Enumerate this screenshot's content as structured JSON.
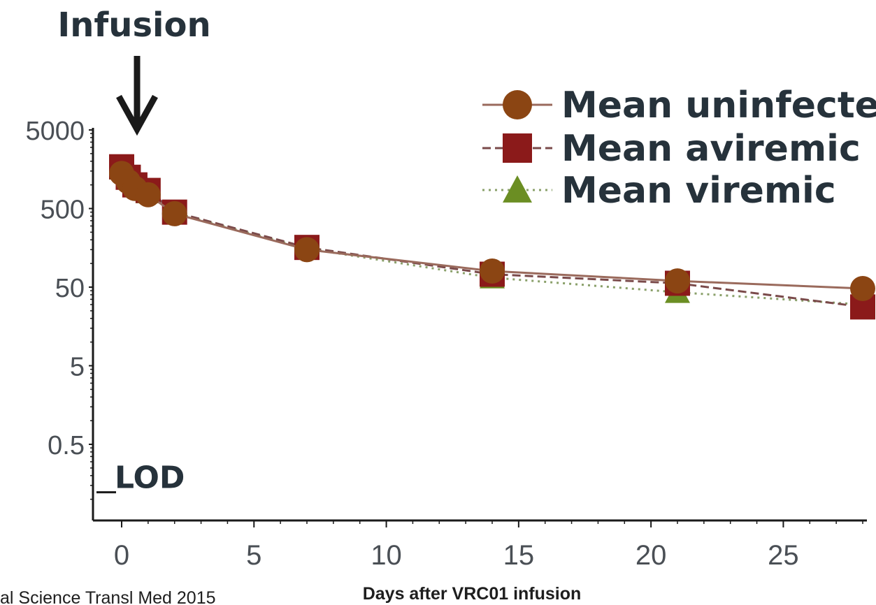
{
  "chart_data": {
    "type": "line",
    "xlabel": "Days after VRC01 infusion",
    "ylabel": "",
    "y_scale": "log",
    "xlim": [
      -1,
      28
    ],
    "ylim": [
      0.05,
      8000
    ],
    "x_ticks": [
      0,
      5,
      10,
      15,
      20,
      25
    ],
    "y_ticks": [
      5000,
      500,
      50,
      5,
      0.5
    ],
    "lod_label": "LOD",
    "lod_value": 0.1,
    "annotation": {
      "text": "Infusion",
      "x": 0.5
    },
    "legend_position": "top-right",
    "series": [
      {
        "name": "Mean uninfected",
        "marker": "circle",
        "line_style": "solid",
        "color": "#8b4513",
        "line_color": "#9a6a5c",
        "x": [
          0,
          0.25,
          0.5,
          1,
          2,
          7,
          14,
          21,
          28
        ],
        "y": [
          1400,
          1100,
          900,
          750,
          430,
          150,
          80,
          60,
          48
        ]
      },
      {
        "name": "Mean aviremic",
        "marker": "square",
        "line_style": "dashed",
        "color": "#8b1a1a",
        "line_color": "#7a4a4a",
        "x": [
          0,
          0.25,
          0.5,
          1,
          2,
          7,
          14,
          21,
          28
        ],
        "y": [
          1700,
          1250,
          1000,
          850,
          450,
          160,
          73,
          56,
          28
        ]
      },
      {
        "name": "Mean viremic",
        "marker": "triangle",
        "line_style": "dotted",
        "color": "#6b8e23",
        "line_color": "#8aa06a",
        "x": [
          0,
          0.25,
          0.5,
          1,
          2,
          7,
          14,
          21,
          28
        ],
        "y": [
          1600,
          1200,
          950,
          800,
          440,
          155,
          66,
          43,
          30
        ]
      }
    ]
  },
  "citation": "al Science Transl Med 2015"
}
